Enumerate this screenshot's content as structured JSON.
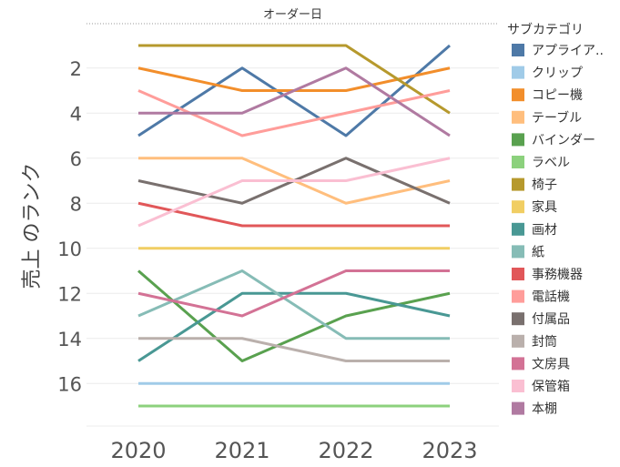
{
  "chart_data": {
    "type": "line",
    "title": "オーダー日",
    "ylabel": "売上 のランク",
    "xlabel": "",
    "x": [
      "2020",
      "2021",
      "2022",
      "2023"
    ],
    "y_inverted": true,
    "ylim": [
      17.5,
      0.5
    ],
    "y_ticks": [
      2,
      4,
      6,
      8,
      10,
      12,
      14,
      16
    ],
    "grid": true,
    "legend_title": "サブカテゴリ",
    "legend_position": "right",
    "series": [
      {
        "name": "アプライア..",
        "color": "#4e79a7",
        "values": [
          5,
          2,
          5,
          1
        ]
      },
      {
        "name": "クリップ",
        "color": "#a0cbe8",
        "values": [
          16,
          16,
          16,
          16
        ]
      },
      {
        "name": "コピー機",
        "color": "#f28e2b",
        "values": [
          2,
          3,
          3,
          2
        ]
      },
      {
        "name": "テーブル",
        "color": "#ffbe7d",
        "values": [
          6,
          6,
          8,
          7
        ]
      },
      {
        "name": "バインダー",
        "color": "#59a14f",
        "values": [
          11,
          15,
          13,
          12
        ]
      },
      {
        "name": "ラベル",
        "color": "#8cd17d",
        "values": [
          17,
          17,
          17,
          17
        ]
      },
      {
        "name": "椅子",
        "color": "#b6992d",
        "values": [
          1,
          1,
          1,
          4
        ]
      },
      {
        "name": "家具",
        "color": "#f1ce63",
        "values": [
          10,
          10,
          10,
          10
        ]
      },
      {
        "name": "画材",
        "color": "#499894",
        "values": [
          15,
          12,
          12,
          13
        ]
      },
      {
        "name": "紙",
        "color": "#86bcb6",
        "values": [
          13,
          11,
          14,
          14
        ]
      },
      {
        "name": "事務機器",
        "color": "#e15759",
        "values": [
          8,
          9,
          9,
          9
        ]
      },
      {
        "name": "電話機",
        "color": "#ff9d9a",
        "values": [
          3,
          5,
          4,
          3
        ]
      },
      {
        "name": "付属品",
        "color": "#79706e",
        "values": [
          7,
          8,
          6,
          8
        ]
      },
      {
        "name": "封筒",
        "color": "#bab0ac",
        "values": [
          14,
          14,
          15,
          15
        ]
      },
      {
        "name": "文房具",
        "color": "#d37295",
        "values": [
          12,
          13,
          11,
          11
        ]
      },
      {
        "name": "保管箱",
        "color": "#fabfd2",
        "values": [
          9,
          7,
          7,
          6
        ]
      },
      {
        "name": "本棚",
        "color": "#b07aa1",
        "values": [
          4,
          4,
          2,
          5
        ]
      }
    ]
  }
}
